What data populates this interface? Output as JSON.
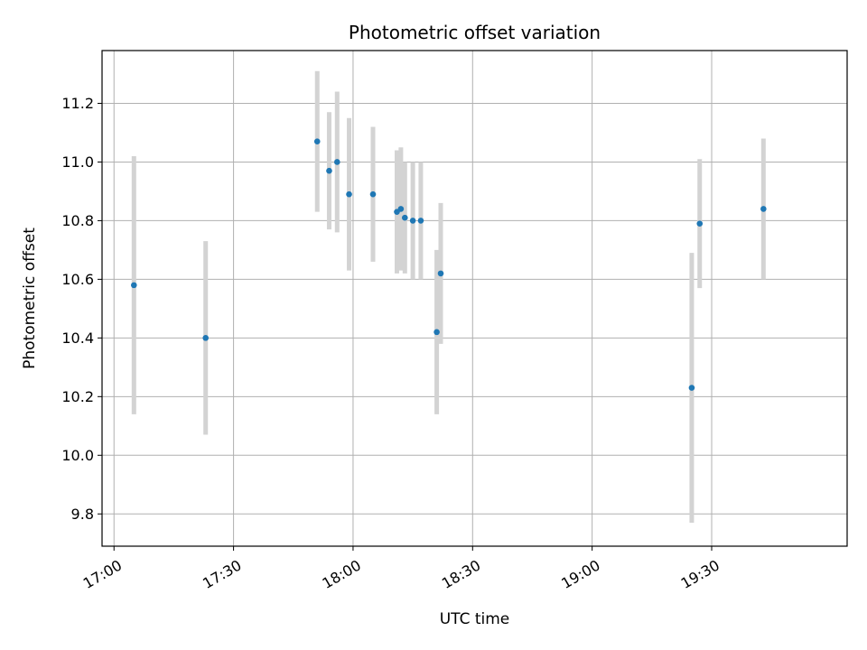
{
  "chart_data": {
    "type": "scatter",
    "title": "Photometric offset variation",
    "xlabel": "UTC time",
    "ylabel": "Photometric offset",
    "x_ticks": [
      "17:00",
      "17:30",
      "18:00",
      "18:30",
      "19:00",
      "19:30"
    ],
    "y_ticks": [
      "9.8",
      "10.0",
      "10.2",
      "10.4",
      "10.6",
      "10.8",
      "11.0",
      "11.2"
    ],
    "xlim": [
      "16:57",
      "20:04"
    ],
    "ylim": [
      9.69,
      11.38
    ],
    "grid": true,
    "points": [
      {
        "x": "17:05",
        "y": 10.58,
        "err": 0.44
      },
      {
        "x": "17:23",
        "y": 10.4,
        "err": 0.33
      },
      {
        "x": "17:51",
        "y": 11.07,
        "err": 0.24
      },
      {
        "x": "17:54",
        "y": 10.97,
        "err": 0.2
      },
      {
        "x": "17:56",
        "y": 11.0,
        "err": 0.24
      },
      {
        "x": "17:59",
        "y": 10.89,
        "err": 0.26
      },
      {
        "x": "18:05",
        "y": 10.89,
        "err": 0.23
      },
      {
        "x": "18:11",
        "y": 10.83,
        "err": 0.21
      },
      {
        "x": "18:12",
        "y": 10.84,
        "err": 0.21
      },
      {
        "x": "18:13",
        "y": 10.81,
        "err": 0.19
      },
      {
        "x": "18:15",
        "y": 10.8,
        "err": 0.2
      },
      {
        "x": "18:17",
        "y": 10.8,
        "err": 0.2
      },
      {
        "x": "18:21",
        "y": 10.42,
        "err": 0.28
      },
      {
        "x": "18:22",
        "y": 10.62,
        "err": 0.24
      },
      {
        "x": "19:25",
        "y": 10.23,
        "err": 0.46
      },
      {
        "x": "19:27",
        "y": 10.79,
        "err": 0.22
      },
      {
        "x": "19:43",
        "y": 10.84,
        "err": 0.24
      }
    ],
    "colors": {
      "marker": "#1f77b4",
      "errorbar": "#d3d3d3",
      "grid": "#b0b0b0",
      "axes": "#000000"
    }
  }
}
